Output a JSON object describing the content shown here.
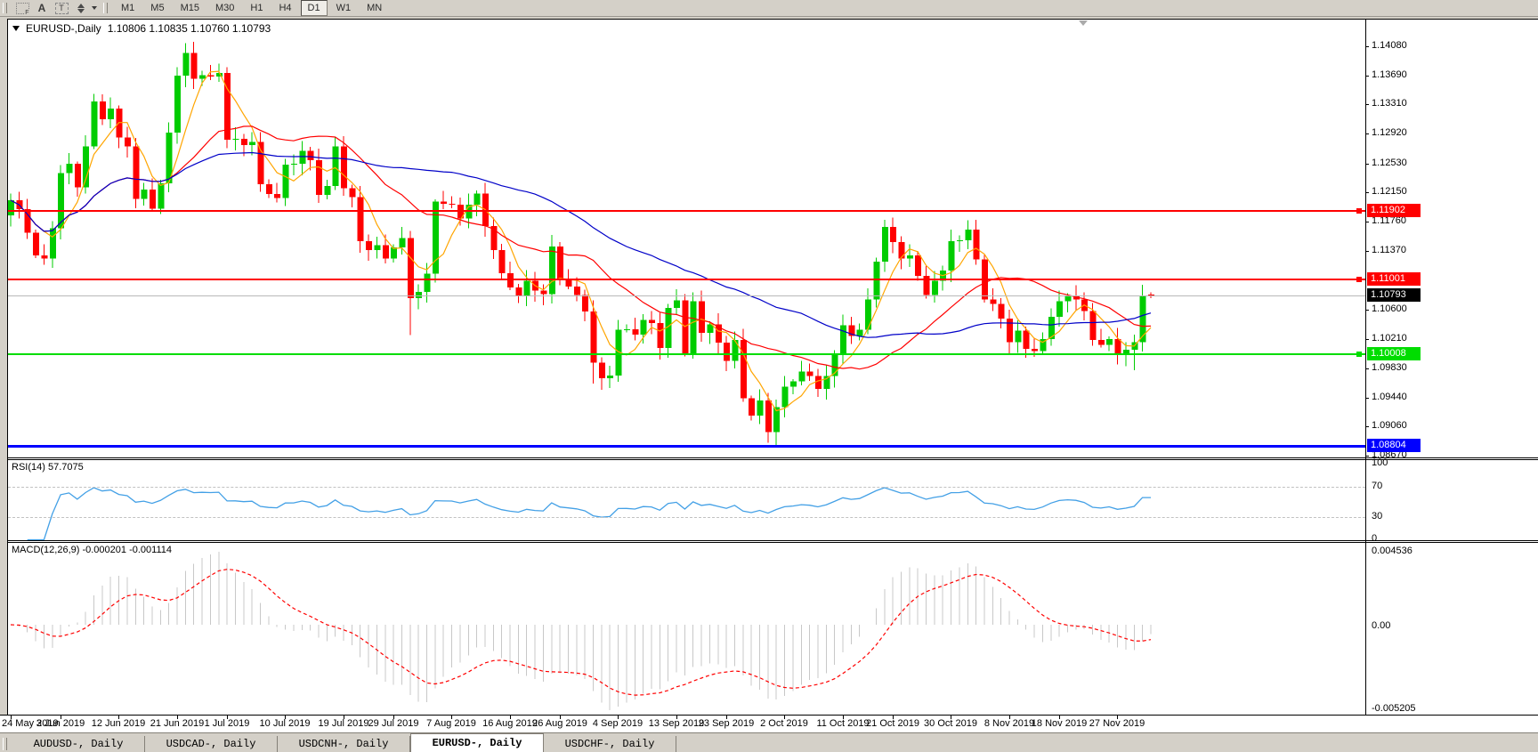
{
  "window": {
    "symbol_label": "EURUSD-,Daily",
    "ohlc": "1.10806 1.10835 1.10760 1.10793"
  },
  "toolbar": {
    "icons": [
      {
        "name": "grid-pattern-icon",
        "glyph": "F"
      },
      {
        "name": "letter-a-icon",
        "glyph": "A"
      },
      {
        "name": "text-box-icon",
        "glyph": "T"
      }
    ],
    "timeframes": [
      {
        "label": "M1",
        "active": false
      },
      {
        "label": "M5",
        "active": false
      },
      {
        "label": "M15",
        "active": false
      },
      {
        "label": "M30",
        "active": false
      },
      {
        "label": "H1",
        "active": false
      },
      {
        "label": "H4",
        "active": false
      },
      {
        "label": "D1",
        "active": true
      },
      {
        "label": "W1",
        "active": false
      },
      {
        "label": "MN",
        "active": false
      }
    ]
  },
  "price_axis": {
    "ticks": [
      {
        "label": "1.14080",
        "price": 1.1408
      },
      {
        "label": "1.13690",
        "price": 1.1369
      },
      {
        "label": "1.13310",
        "price": 1.1331
      },
      {
        "label": "1.12920",
        "price": 1.1292
      },
      {
        "label": "1.12530",
        "price": 1.1253
      },
      {
        "label": "1.12150",
        "price": 1.1215
      },
      {
        "label": "1.11760",
        "price": 1.1176
      },
      {
        "label": "1.11370",
        "price": 1.1137
      },
      {
        "label": "1.10600",
        "price": 1.106
      },
      {
        "label": "1.10210",
        "price": 1.1021
      },
      {
        "label": "1.09830",
        "price": 1.0983
      },
      {
        "label": "1.09440",
        "price": 1.0944
      },
      {
        "label": "1.09060",
        "price": 1.0906
      },
      {
        "label": "1.08670",
        "price": 1.0867
      }
    ],
    "levels": [
      {
        "label": "1.11902",
        "price": 1.11902,
        "color": "#FF0000",
        "thickness": 2,
        "endpoint": true,
        "role": "resistance-line"
      },
      {
        "label": "1.11001",
        "price": 1.11001,
        "color": "#FF0000",
        "thickness": 2,
        "endpoint": true,
        "role": "resistance-line"
      },
      {
        "label": "1.10008",
        "price": 1.10008,
        "color": "#00DD00",
        "thickness": 2,
        "endpoint": true,
        "role": "support-line"
      },
      {
        "label": "1.08804",
        "price": 1.08804,
        "color": "#0000FF",
        "thickness": 3,
        "endpoint": false,
        "role": "support-line"
      }
    ],
    "current": {
      "label": "1.10793",
      "price": 1.10793,
      "line_color": "#b8b8b8",
      "box_color": "#000000"
    }
  },
  "rsi_panel": {
    "label": "RSI(14) 57.7075",
    "period": 14,
    "value": 57.7075,
    "scale_labels": [
      "100",
      "70",
      "30",
      "0"
    ],
    "level_lines": [
      70,
      30
    ],
    "line_color": "#43A0E6"
  },
  "macd_panel": {
    "label": "MACD(12,26,9) -0.000201 -0.001114",
    "fast": 12,
    "slow": 26,
    "signal": 9,
    "values": [
      -0.000201,
      -0.001114
    ],
    "scale_top": "0.004536",
    "scale_mid": "0.00",
    "scale_bottom": "-0.005205",
    "hist_color": "#C8C8C8",
    "signal_color": "#FF0000"
  },
  "date_axis": {
    "labels": [
      {
        "text": "24 May 2019",
        "candle": 0
      },
      {
        "text": "3 Jun 2019",
        "candle": 6
      },
      {
        "text": "12 Jun 2019",
        "candle": 13
      },
      {
        "text": "21 Jun 2019",
        "candle": 20
      },
      {
        "text": "1 Jul 2019",
        "candle": 26
      },
      {
        "text": "10 Jul 2019",
        "candle": 33
      },
      {
        "text": "19 Jul 2019",
        "candle": 40
      },
      {
        "text": "29 Jul 2019",
        "candle": 46
      },
      {
        "text": "7 Aug 2019",
        "candle": 53
      },
      {
        "text": "16 Aug 2019",
        "candle": 60
      },
      {
        "text": "26 Aug 2019",
        "candle": 66
      },
      {
        "text": "4 Sep 2019",
        "candle": 73
      },
      {
        "text": "13 Sep 2019",
        "candle": 80
      },
      {
        "text": "23 Sep 2019",
        "candle": 86
      },
      {
        "text": "2 Oct 2019",
        "candle": 93
      },
      {
        "text": "11 Oct 2019",
        "candle": 100
      },
      {
        "text": "21 Oct 2019",
        "candle": 106
      },
      {
        "text": "30 Oct 2019",
        "candle": 113
      },
      {
        "text": "8 Nov 2019",
        "candle": 120
      },
      {
        "text": "18 Nov 2019",
        "candle": 126
      },
      {
        "text": "27 Nov 2019",
        "candle": 133
      }
    ]
  },
  "tabs": [
    {
      "label": "AUDUSD-, Daily",
      "active": false
    },
    {
      "label": "USDCAD-, Daily",
      "active": false
    },
    {
      "label": "USDCNH-, Daily",
      "active": false
    },
    {
      "label": "EURUSD-, Daily",
      "active": true
    },
    {
      "label": "USDCHF-, Daily",
      "active": false
    }
  ],
  "chart_data": {
    "type": "candlestick",
    "symbol": "EURUSD",
    "timeframe": "Daily",
    "bull_color": "#00CC00",
    "bear_color": "#FF0000",
    "first_open": 1.1185,
    "closes": [
      1.1205,
      1.1193,
      1.1162,
      1.1132,
      1.1128,
      1.1168,
      1.1241,
      1.1253,
      1.1222,
      1.1276,
      1.1335,
      1.1312,
      1.1326,
      1.1288,
      1.1276,
      1.1207,
      1.1219,
      1.1194,
      1.1227,
      1.1294,
      1.1369,
      1.1399,
      1.1365,
      1.137,
      1.1368,
      1.1373,
      1.1285,
      1.1286,
      1.1278,
      1.1282,
      1.1226,
      1.1213,
      1.1208,
      1.1252,
      1.1253,
      1.127,
      1.1258,
      1.1212,
      1.1224,
      1.1276,
      1.1221,
      1.1209,
      1.1151,
      1.1139,
      1.1146,
      1.1128,
      1.1143,
      1.1155,
      1.1076,
      1.1084,
      1.1108,
      1.1203,
      1.12,
      1.1199,
      1.1181,
      1.1199,
      1.1214,
      1.1171,
      1.1139,
      1.1109,
      1.109,
      1.1078,
      1.1099,
      1.1086,
      1.1081,
      1.1144,
      1.1101,
      1.1091,
      1.108,
      1.1058,
      1.0991,
      1.097,
      1.0974,
      1.1034,
      1.1035,
      1.1028,
      1.1047,
      1.1043,
      1.101,
      1.1063,
      1.1073,
      1.1003,
      1.1072,
      1.103,
      1.1041,
      1.1017,
      1.0993,
      1.1021,
      1.0944,
      1.0921,
      1.0941,
      1.0899,
      1.0932,
      1.0959,
      1.0966,
      1.0979,
      1.0973,
      1.0956,
      1.0973,
      1.1003,
      1.104,
      1.1026,
      1.1034,
      1.1074,
      1.1124,
      1.117,
      1.115,
      1.1128,
      1.1132,
      1.1105,
      1.108,
      1.1099,
      1.1112,
      1.1151,
      1.1152,
      1.1166,
      1.1127,
      1.1074,
      1.1068,
      1.1049,
      1.1018,
      1.1033,
      1.1009,
      1.1006,
      1.1022,
      1.1051,
      1.1072,
      1.1078,
      1.1074,
      1.1059,
      1.1021,
      1.1014,
      1.1022,
      1.1001,
      1.1008,
      1.1018,
      1.1079
    ],
    "last_bar": {
      "o": 1.10806,
      "h": 1.10835,
      "l": 1.1076,
      "c": 1.10793
    },
    "wick_overrides": {
      "21": {
        "h": 1.1412
      },
      "48": {
        "l": 1.1027
      },
      "70": {
        "l": 1.0963
      },
      "91": {
        "l": 1.0885
      },
      "92": {
        "l": 1.0879
      },
      "105": {
        "h": 1.1179
      },
      "135": {
        "l": 1.0981
      }
    },
    "moving_averages": [
      {
        "period": 5,
        "color": "#FFA500"
      },
      {
        "period": 20,
        "color": "#FF0000"
      },
      {
        "period": 45,
        "color": "#0000C8"
      }
    ]
  }
}
